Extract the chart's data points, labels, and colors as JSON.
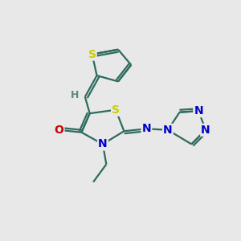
{
  "bg_color": "#e8e8e8",
  "bond_color": "#2d6b5e",
  "S_color": "#cccc00",
  "N_color": "#0000cc",
  "O_color": "#cc0000",
  "H_color": "#5a8a7a",
  "font_size": 10,
  "small_font": 9,
  "fig_size": [
    3.0,
    3.0
  ],
  "dpi": 100,
  "xlim": [
    0,
    10
  ],
  "ylim": [
    0,
    10
  ]
}
